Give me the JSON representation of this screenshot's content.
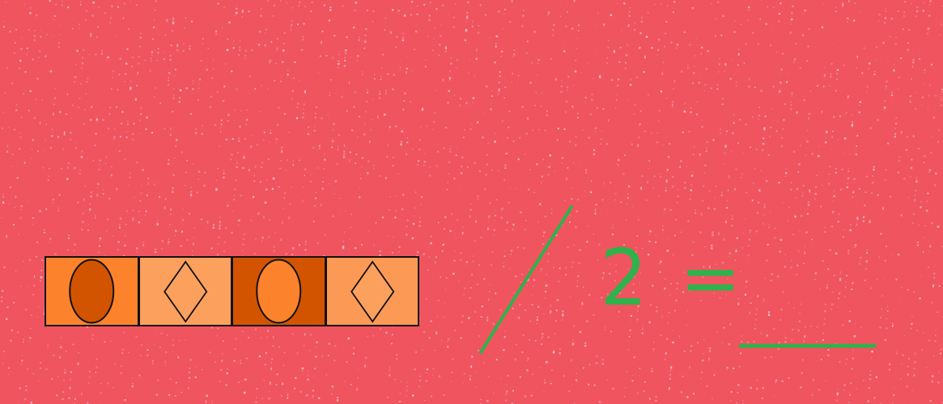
{
  "board": {
    "background_color": "#f0545f",
    "chalk_color": "#2fb24b"
  },
  "pattern": {
    "tiles": [
      {
        "shape": "oval",
        "fill": "#fc832c",
        "shape_fill": "#d35400"
      },
      {
        "shape": "diamond",
        "fill": "#fca05e",
        "shape_fill": "#fca05e"
      },
      {
        "shape": "oval",
        "fill": "#d35400",
        "shape_fill": "#fc832c"
      },
      {
        "shape": "diamond",
        "fill": "#fc9a55",
        "shape_fill": "#fca05e"
      }
    ]
  },
  "equation": {
    "divisor": "2",
    "equals": "="
  }
}
